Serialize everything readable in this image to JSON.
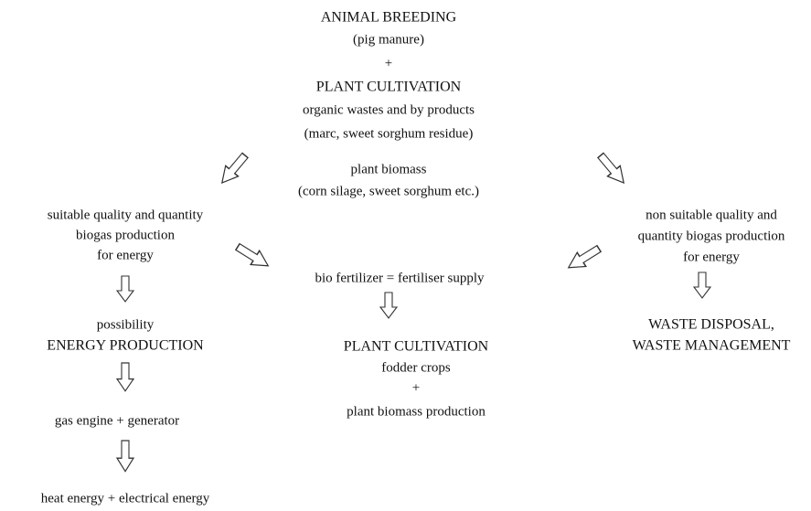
{
  "nodes": [
    {
      "lines": [
        "ANIMAL BREEDING",
        "(pig manure)",
        "+",
        "PLANT CULTIVATION",
        "organic wastes and by products",
        "(marc, sweet sorghum residue)"
      ]
    },
    {
      "lines": [
        "plant biomass",
        "(corn silage, sweet sorghum etc.)"
      ]
    },
    {
      "lines": [
        "suitable quality and quantity",
        "biogas production",
        "for energy"
      ]
    },
    {
      "lines": [
        "non suitable quality and",
        "quantity biogas production",
        "for energy"
      ]
    },
    {
      "lines": [
        "bio fertilizer = fertiliser supply"
      ]
    },
    {
      "lines": [
        "possibility",
        "ENERGY PRODUCTION"
      ]
    },
    {
      "lines": [
        "PLANT CULTIVATION",
        "fodder crops",
        "+",
        "plant biomass production"
      ]
    },
    {
      "lines": [
        "WASTE DISPOSAL,",
        "WASTE MANAGEMENT"
      ]
    },
    {
      "lines": [
        "gas engine + generator"
      ]
    },
    {
      "lines": [
        "heat energy + electrical energy"
      ]
    }
  ]
}
